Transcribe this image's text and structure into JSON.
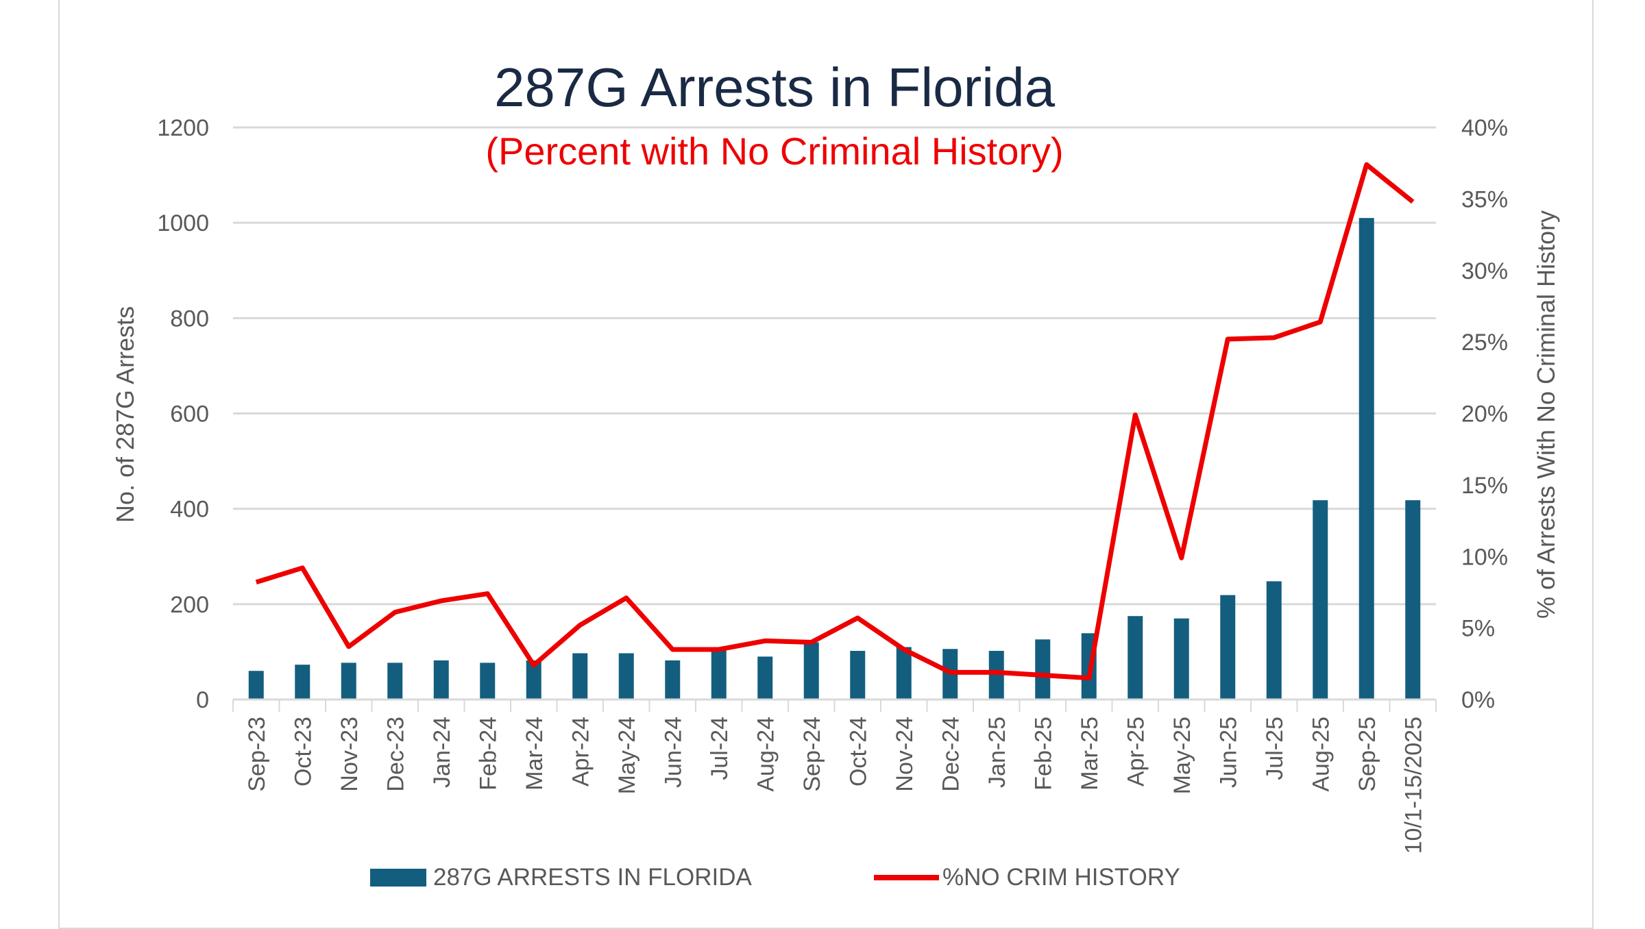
{
  "chart_data": {
    "type": "bar+line",
    "title": "287G Arrests in Florida",
    "subtitle": "(Percent with No Criminal History)",
    "ylabel": "No. of 287G Arrests",
    "y2label": "% of Arrests With No Criminal History",
    "ylim": [
      0,
      1200
    ],
    "y2lim": [
      0,
      40
    ],
    "yticks": [
      "0",
      "200",
      "400",
      "600",
      "800",
      "1000",
      "1200"
    ],
    "y2ticks": [
      "0%",
      "5%",
      "10%",
      "15%",
      "20%",
      "25%",
      "30%",
      "35%",
      "40%"
    ],
    "grid": true,
    "legend_position": "bottom",
    "categories": [
      "Sep-23",
      "Oct-23",
      "Nov-23",
      "Dec-23",
      "Jan-24",
      "Feb-24",
      "Mar-24",
      "Apr-24",
      "May-24",
      "Jun-24",
      "Jul-24",
      "Aug-24",
      "Sep-24",
      "Oct-24",
      "Nov-24",
      "Dec-24",
      "Jan-25",
      "Feb-25",
      "Mar-25",
      "Apr-25",
      "May-25",
      "Jun-25",
      "Jul-25",
      "Aug-25",
      "Sep-25",
      "10/1-15/2025"
    ],
    "series": [
      {
        "name": "287G ARRESTS IN FLORIDA",
        "type": "bar",
        "axis": "left",
        "color": "#135e7f",
        "values": [
          60,
          73,
          77,
          77,
          82,
          77,
          82,
          97,
          97,
          82,
          108,
          90,
          120,
          102,
          110,
          106,
          102,
          126,
          139,
          175,
          170,
          219,
          248,
          418,
          1010,
          418
        ]
      },
      {
        "name": "%NO CRIM HISTORY",
        "type": "line",
        "axis": "right",
        "color": "#ee0000",
        "values": [
          8.2,
          9.2,
          3.7,
          6.1,
          6.9,
          7.4,
          2.4,
          5.2,
          7.1,
          3.5,
          3.5,
          4.1,
          4.0,
          5.7,
          3.5,
          1.9,
          1.9,
          1.7,
          1.5,
          19.9,
          9.9,
          25.2,
          25.3,
          26.4,
          37.4,
          34.8
        ]
      }
    ]
  }
}
